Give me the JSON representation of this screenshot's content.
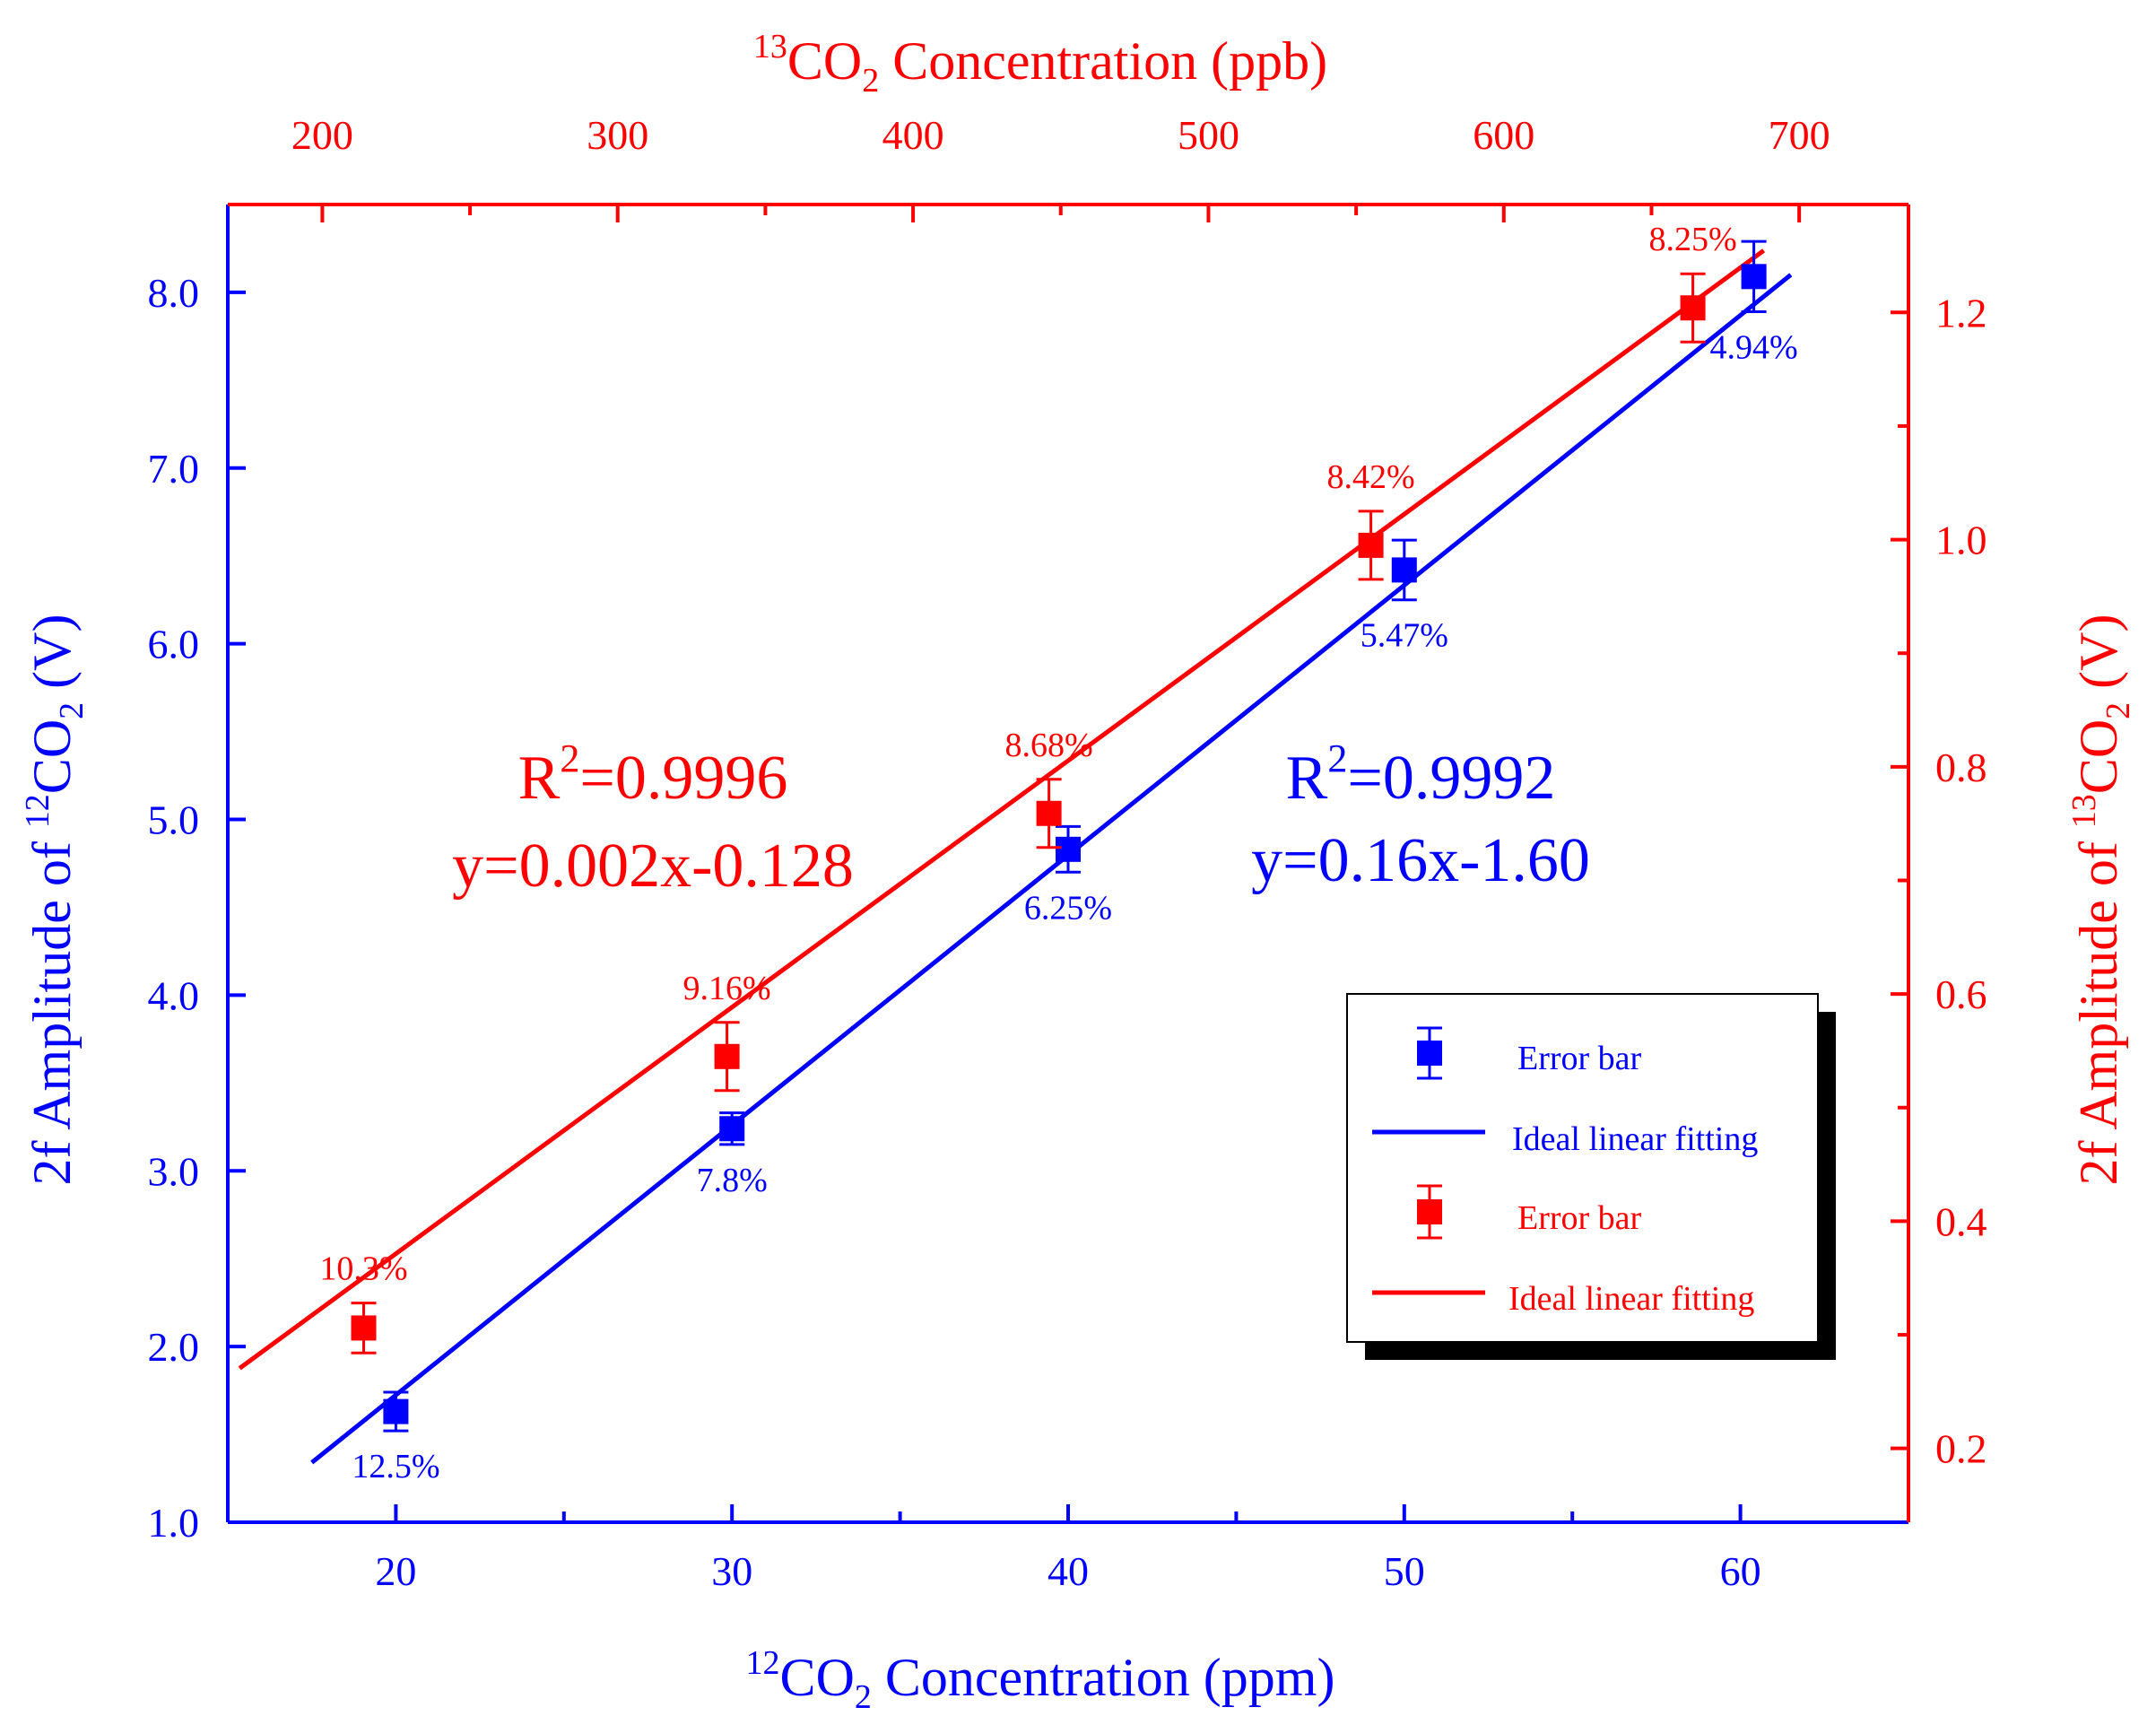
{
  "colors": {
    "blue": "#0000ff",
    "red": "#ff0000",
    "black": "#000000"
  },
  "chart_data": {
    "type": "scatter",
    "axes": {
      "bottom": {
        "label_pre": "12",
        "label_text": "CO",
        "label_sub": "2",
        "label_post": " Concentration (ppm)",
        "range": [
          15,
          65
        ],
        "ticks": [
          20,
          30,
          40,
          50,
          60
        ],
        "tick_labels": [
          "20",
          "30",
          "40",
          "50",
          "60"
        ]
      },
      "top": {
        "label_pre": "13",
        "label_text": "CO",
        "label_sub": "2",
        "label_post": " Concentration (ppb)",
        "range": [
          168,
          737
        ],
        "ticks": [
          200,
          300,
          400,
          500,
          600,
          700
        ],
        "tick_labels": [
          "200",
          "300",
          "400",
          "500",
          "600",
          "700"
        ]
      },
      "left": {
        "label_pre": "2f Amplitude of ",
        "label_sup": "12",
        "label_text": "CO",
        "label_sub": "2",
        "label_post": " (V)",
        "range": [
          1.0,
          8.5
        ],
        "ticks": [
          1,
          2,
          3,
          4,
          5,
          6,
          7,
          8
        ],
        "tick_labels": [
          "1.0",
          "2.0",
          "3.0",
          "4.0",
          "5.0",
          "6.0",
          "7.0",
          "8.0"
        ]
      },
      "right": {
        "label_pre": "2f Amplitude of ",
        "label_sup": "13",
        "label_text": "CO",
        "label_sub": "2",
        "label_post": " (V)",
        "range": [
          0.135,
          1.295
        ],
        "ticks": [
          0.2,
          0.4,
          0.6,
          0.8,
          1.0,
          1.2
        ],
        "tick_labels": [
          "0.2",
          "0.4",
          "0.6",
          "0.8",
          "1.0",
          "1.2"
        ]
      }
    },
    "series": [
      {
        "name": "Error bar",
        "color": "#0000ff",
        "axes": "bottom-left",
        "x": [
          20,
          30,
          40,
          50,
          60.4
        ],
        "y": [
          1.63,
          3.24,
          4.83,
          6.42,
          8.09
        ],
        "err": [
          0.11,
          0.09,
          0.13,
          0.17,
          0.2
        ],
        "labels": [
          "12.5%",
          "7.8%",
          "6.25%",
          "5.47%",
          "4.94%"
        ]
      },
      {
        "name": "Error bar",
        "color": "#ff0000",
        "axes": "top-right",
        "x": [
          214,
          337,
          446,
          555,
          664
        ],
        "y": [
          0.306,
          0.545,
          0.759,
          0.995,
          1.204
        ],
        "err": [
          0.022,
          0.03,
          0.03,
          0.03,
          0.03
        ],
        "labels": [
          "10.3%",
          "9.16%",
          "8.68%",
          "8.42%",
          "8.25%"
        ]
      }
    ],
    "fits": [
      {
        "name": "Ideal linear fitting",
        "color": "#0000ff",
        "axes": "bottom-left",
        "x": [
          17.5,
          61.5
        ],
        "y": [
          1.34,
          8.1
        ]
      },
      {
        "name": "Ideal linear fitting",
        "color": "#ff0000",
        "axes": "top-right",
        "x": [
          172,
          688
        ],
        "y": [
          0.2705,
          1.2545
        ]
      }
    ],
    "annotations": {
      "red": {
        "r2_pre": "R",
        "r2_sup": "2",
        "r2_post": "=0.9996",
        "equation": "y=0.002x-0.128"
      },
      "blue": {
        "r2_pre": "R",
        "r2_sup": "2",
        "r2_post": "=0.9992",
        "equation": "y=0.16x-1.60"
      }
    },
    "legend": {
      "position": "lower-right",
      "entries": [
        {
          "label": "Error bar",
          "kind": "marker",
          "color": "#0000ff"
        },
        {
          "label": "Ideal linear fitting",
          "kind": "line",
          "color": "#0000ff"
        },
        {
          "label": "Error bar",
          "kind": "marker",
          "color": "#ff0000"
        },
        {
          "label": "Ideal linear fitting",
          "kind": "line",
          "color": "#ff0000"
        }
      ]
    }
  }
}
